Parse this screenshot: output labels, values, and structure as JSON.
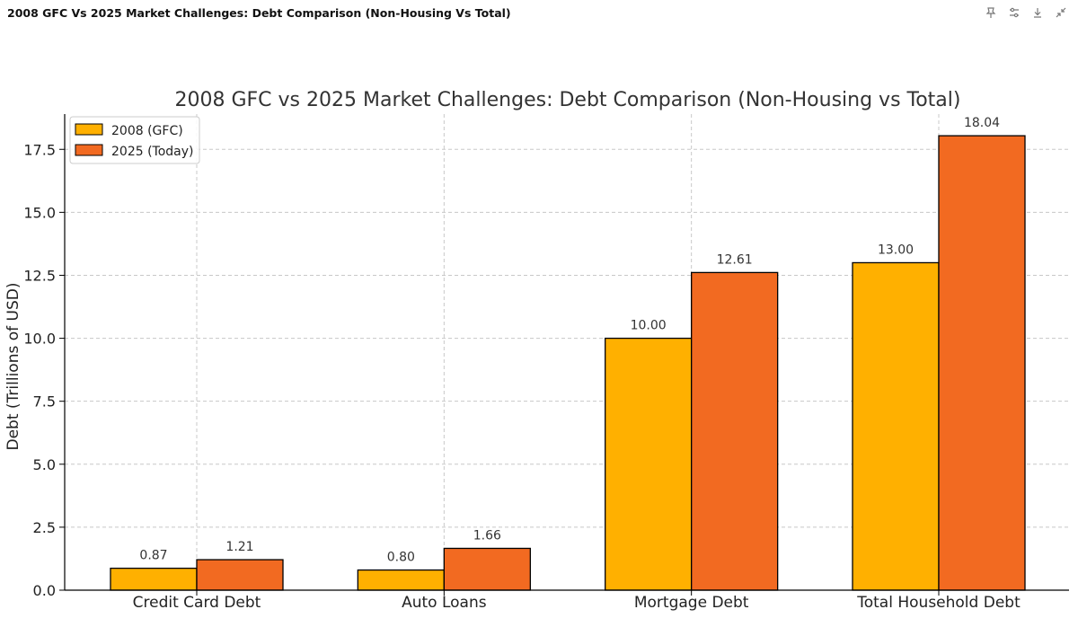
{
  "window": {
    "title": "2008 GFC Vs 2025 Market Challenges: Debt Comparison (Non-Housing Vs Total)"
  },
  "toolbar": {
    "buttons": [
      {
        "icon": "pin-icon"
      },
      {
        "icon": "sliders-icon"
      },
      {
        "icon": "download-icon"
      },
      {
        "icon": "collapse-icon"
      }
    ]
  },
  "chart_data": {
    "type": "bar",
    "title": "2008 GFC vs 2025 Market Challenges: Debt Comparison (Non-Housing vs Total)",
    "xlabel": "",
    "ylabel": "Debt (Trillions of USD)",
    "categories": [
      "Credit Card Debt",
      "Auto Loans",
      "Mortgage Debt",
      "Total Household Debt"
    ],
    "series": [
      {
        "name": "2008 (GFC)",
        "color": "#FFB000",
        "values": [
          0.87,
          0.8,
          10.0,
          13.0
        ]
      },
      {
        "name": "2025 (Today)",
        "color": "#F26A21",
        "values": [
          1.21,
          1.66,
          12.61,
          18.04
        ]
      }
    ],
    "ylim": [
      0,
      18.9
    ],
    "yticks": [
      0.0,
      2.5,
      5.0,
      7.5,
      10.0,
      12.5,
      15.0,
      17.5
    ],
    "grid": true,
    "legend": "top-left",
    "data_labels": true
  }
}
